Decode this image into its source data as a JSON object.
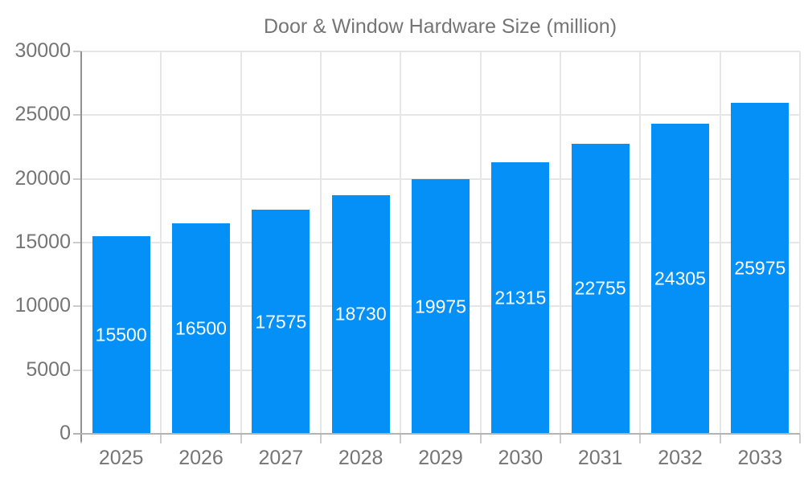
{
  "legend": {
    "label": "Door & Window Hardware Size (million)"
  },
  "colors": {
    "bar": "#0590f7",
    "bar_value_text": "#ffffff",
    "axis_text": "#757575",
    "gridline": "#e6e6e6",
    "tick": "#cccccc",
    "x_axis_line": "#b3b3b3",
    "y_axis_line": "#909090",
    "background": "#ffffff"
  },
  "chart_data": {
    "type": "bar",
    "title": "Door & Window Hardware Size (million)",
    "categories": [
      "2025",
      "2026",
      "2027",
      "2028",
      "2029",
      "2030",
      "2031",
      "2032",
      "2033"
    ],
    "values": [
      15500,
      16500,
      17575,
      18730,
      19975,
      21315,
      22755,
      24305,
      25975
    ],
    "xlabel": "",
    "ylabel": "",
    "ylim": [
      0,
      30000
    ],
    "yticks": [
      0,
      5000,
      10000,
      15000,
      20000,
      25000,
      30000
    ],
    "grid": true,
    "legend_position": "top-center",
    "value_labels": "inside-center-white"
  }
}
